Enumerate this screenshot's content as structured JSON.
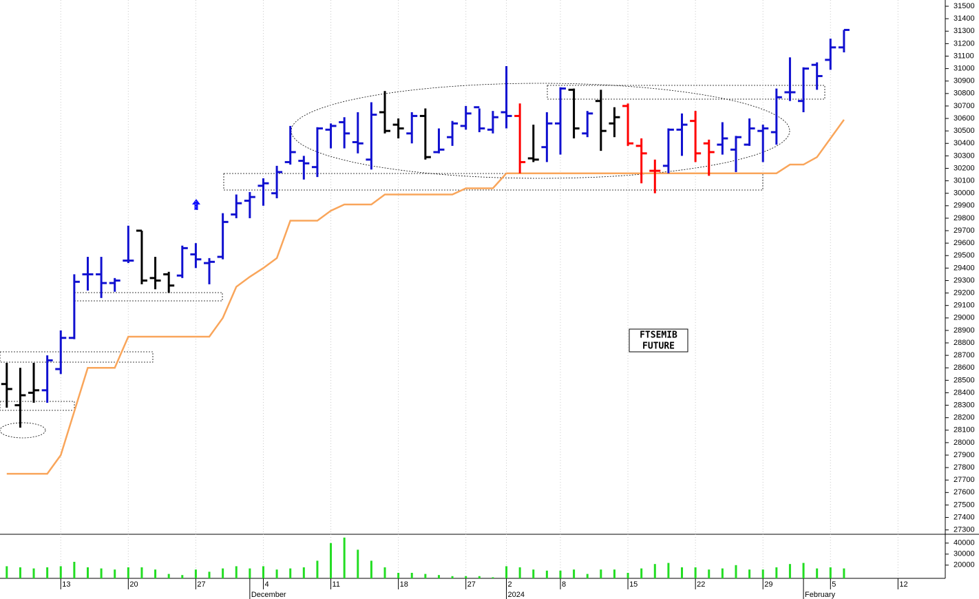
{
  "chart_data": {
    "type": "ohlc",
    "title_lines": [
      "FTSEMIB",
      "FUTURE"
    ],
    "categories": [
      null,
      null,
      null,
      null,
      "13",
      null,
      null,
      null,
      null,
      "20",
      null,
      null,
      null,
      null,
      "27",
      null,
      null,
      null,
      null,
      "4",
      null,
      null,
      null,
      null,
      "11",
      null,
      null,
      null,
      null,
      "18",
      null,
      null,
      null,
      null,
      "27",
      null,
      null,
      "2",
      null,
      null,
      null,
      "8",
      null,
      null,
      null,
      null,
      "15",
      null,
      null,
      null,
      null,
      "22",
      null,
      null,
      null,
      null,
      "29",
      null,
      null,
      null,
      null,
      "5",
      null,
      null,
      null,
      null,
      "12",
      null,
      null,
      null
    ],
    "month_labels": [
      null,
      null,
      null,
      null,
      null,
      null,
      null,
      null,
      null,
      null,
      null,
      null,
      null,
      null,
      null,
      null,
      null,
      null,
      "December",
      null,
      null,
      null,
      null,
      null,
      null,
      null,
      null,
      null,
      null,
      null,
      null,
      null,
      null,
      null,
      null,
      null,
      null,
      "2024",
      null,
      null,
      null,
      null,
      null,
      null,
      null,
      null,
      null,
      null,
      null,
      null,
      null,
      null,
      null,
      null,
      null,
      null,
      null,
      null,
      null,
      "February",
      null,
      null,
      null,
      null,
      null,
      null,
      null,
      null,
      null,
      null
    ],
    "open": [
      28470,
      28300,
      28400,
      28420,
      28590,
      28840,
      29350,
      29350,
      29280,
      29460,
      29700,
      29320,
      29350,
      29340,
      29510,
      29440,
      29490,
      29830,
      29940,
      30060,
      30000,
      30250,
      30260,
      30210,
      30510,
      30570,
      30410,
      30270,
      30650,
      30550,
      30480,
      30620,
      30330,
      30450,
      30540,
      30690,
      30510,
      30650,
      30620,
      30280,
      30370,
      30560,
      30830,
      30480,
      30740,
      30560,
      30700,
      30380,
      30180,
      30220,
      30510,
      30580,
      30400,
      30390,
      30350,
      30390,
      30500,
      30490,
      30810,
      30740,
      31030,
      31070,
      31170,
      null,
      null,
      null,
      null,
      null,
      null,
      null
    ],
    "high": [
      28640,
      28600,
      28640,
      28700,
      28900,
      29350,
      29490,
      29490,
      29320,
      29740,
      29700,
      29490,
      29370,
      29580,
      29600,
      29480,
      29840,
      29990,
      30010,
      30120,
      30220,
      30540,
      30300,
      30530,
      30560,
      30610,
      30650,
      30730,
      30820,
      30600,
      30650,
      30680,
      30520,
      30580,
      30700,
      30680,
      30660,
      31020,
      30720,
      30550,
      30650,
      30850,
      30840,
      30660,
      30830,
      30690,
      30720,
      30440,
      30270,
      30520,
      30640,
      30660,
      30430,
      30570,
      30460,
      30600,
      30550,
      30840,
      31090,
      31010,
      31050,
      31240,
      31310,
      null,
      null,
      null,
      null,
      null,
      null,
      null
    ],
    "low": [
      28280,
      28120,
      28320,
      28320,
      28550,
      28830,
      29220,
      29160,
      29210,
      29440,
      29270,
      29230,
      29200,
      29320,
      29400,
      29270,
      29470,
      29800,
      29800,
      29900,
      29960,
      30230,
      30110,
      30130,
      30360,
      30360,
      30320,
      30190,
      30480,
      30440,
      30400,
      30270,
      30320,
      30380,
      30510,
      30490,
      30480,
      30520,
      30160,
      30250,
      30250,
      30310,
      30440,
      30450,
      30340,
      30450,
      30380,
      30080,
      30000,
      30160,
      30300,
      30250,
      30140,
      30310,
      30170,
      30380,
      30250,
      30390,
      30740,
      30650,
      30830,
      30990,
      31130,
      null,
      null,
      null,
      null,
      null,
      null,
      null
    ],
    "close": [
      28430,
      28380,
      28420,
      28660,
      28840,
      29290,
      29350,
      29280,
      29300,
      29460,
      29300,
      29300,
      29260,
      29560,
      29470,
      29450,
      29770,
      29920,
      29970,
      30080,
      30170,
      30330,
      30240,
      30520,
      30540,
      30480,
      30400,
      30630,
      30500,
      30520,
      30620,
      30290,
      30350,
      30560,
      30640,
      30520,
      30610,
      30620,
      30250,
      30270,
      30560,
      30840,
      30520,
      30640,
      30500,
      30610,
      30400,
      30320,
      30180,
      30510,
      30550,
      30320,
      30330,
      30440,
      30450,
      30520,
      30520,
      30770,
      30810,
      31000,
      30940,
      31170,
      31310,
      null,
      null,
      null,
      null,
      null,
      null,
      null
    ],
    "colors": [
      "#000000",
      "#000000",
      "#000000",
      "#1010d0",
      "#1010d0",
      "#1010d0",
      "#1010d0",
      "#1010d0",
      "#1010d0",
      "#1010d0",
      "#000000",
      "#000000",
      "#000000",
      "#1010d0",
      "#1010d0",
      "#1010d0",
      "#1010d0",
      "#1010d0",
      "#1010d0",
      "#1010d0",
      "#1010d0",
      "#1010d0",
      "#1010d0",
      "#1010d0",
      "#1010d0",
      "#1010d0",
      "#1010d0",
      "#1010d0",
      "#000000",
      "#000000",
      "#1010d0",
      "#000000",
      "#1010d0",
      "#1010d0",
      "#1010d0",
      "#1010d0",
      "#1010d0",
      "#1010d0",
      "#ff0000",
      "#000000",
      "#1010d0",
      "#1010d0",
      "#000000",
      "#1010d0",
      "#000000",
      "#000000",
      "#ff0000",
      "#ff0000",
      "#ff0000",
      "#1010d0",
      "#1010d0",
      "#ff0000",
      "#ff0000",
      "#1010d0",
      "#1010d0",
      "#1010d0",
      "#1010d0",
      "#1010d0",
      "#1010d0",
      "#1010d0",
      "#1010d0",
      "#1010d0",
      "#1010d0",
      null,
      null,
      null,
      null,
      null,
      null,
      null
    ],
    "stop_line": {
      "color": "#f9a55a",
      "values": [
        27750,
        27750,
        27750,
        27750,
        27900,
        28250,
        28600,
        28600,
        28600,
        28850,
        28850,
        28850,
        28850,
        28850,
        28850,
        28850,
        29000,
        29250,
        29330,
        29400,
        29480,
        29780,
        29780,
        29780,
        29860,
        29910,
        29910,
        29910,
        29990,
        29990,
        29990,
        29990,
        29990,
        29990,
        30040,
        30040,
        30040,
        30160,
        30160,
        30160,
        30160,
        30160,
        30160,
        30160,
        30160,
        30160,
        30160,
        30160,
        30160,
        30160,
        30160,
        30160,
        30160,
        30160,
        30160,
        30160,
        30160,
        30160,
        30230,
        30230,
        30290,
        30440,
        30590,
        null,
        null,
        null,
        null,
        null,
        null,
        null
      ]
    },
    "volume": {
      "color": "#22dd22",
      "values": [
        19000,
        18000,
        17000,
        18000,
        19000,
        23000,
        18000,
        17000,
        16000,
        18000,
        18000,
        16000,
        12000,
        11000,
        16000,
        14000,
        17000,
        19000,
        17000,
        19000,
        16000,
        17000,
        18000,
        24000,
        40000,
        45000,
        34000,
        24000,
        18000,
        13000,
        13000,
        12000,
        11000,
        10000,
        10000,
        10000,
        9000,
        19000,
        18000,
        16000,
        15000,
        15000,
        16000,
        12000,
        16000,
        16000,
        13000,
        17000,
        21000,
        22000,
        18000,
        18000,
        16000,
        17000,
        20000,
        16000,
        16000,
        18000,
        21000,
        22000,
        17000,
        18000,
        17000,
        null,
        null,
        null,
        null,
        null,
        null,
        null
      ],
      "ylim": [
        8000,
        47000
      ],
      "yticks": [
        20000,
        30000,
        40000
      ]
    },
    "ylim": [
      27265,
      31550
    ],
    "yticks": [
      27300,
      27400,
      27500,
      27600,
      27700,
      27800,
      27900,
      28000,
      28100,
      28200,
      28300,
      28400,
      28500,
      28600,
      28700,
      28800,
      28900,
      29000,
      29100,
      29200,
      29300,
      29400,
      29500,
      29600,
      29700,
      29800,
      29900,
      30000,
      30100,
      30200,
      30300,
      30400,
      30500,
      30600,
      30700,
      30800,
      30900,
      31000,
      31100,
      31200,
      31300,
      31400,
      31500
    ],
    "grid": true
  }
}
